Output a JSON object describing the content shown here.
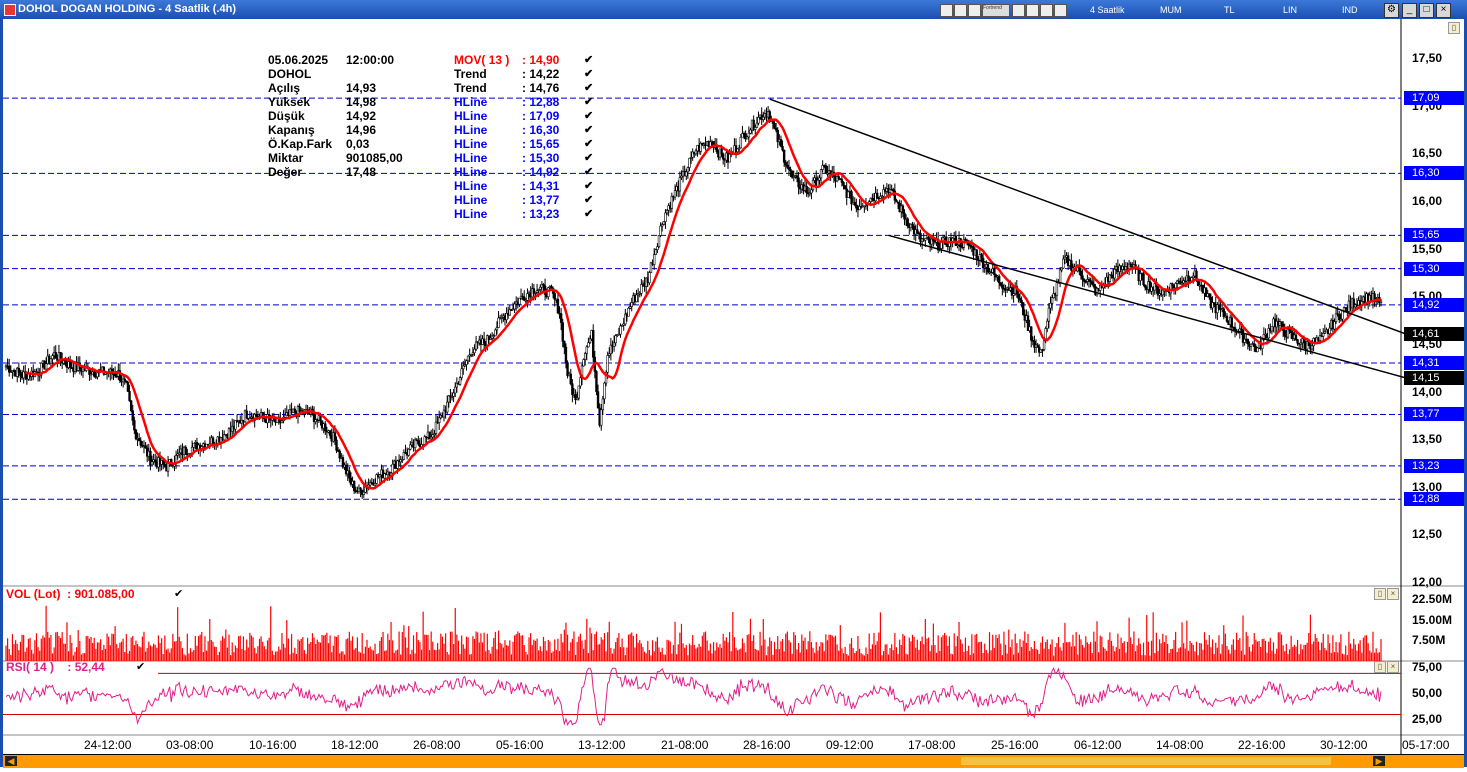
{
  "window": {
    "title": "DOHOL DOGAN HOLDING - 4 Saatlik (.4h)"
  },
  "toolbar": {
    "interval": "4 Saatlik",
    "candle_type": "MUM",
    "currency": "TL",
    "scale": "LIN",
    "mode": "IND",
    "plugin": "Fortrend"
  },
  "info": {
    "rows": [
      {
        "label": "05.06.2025",
        "value": "12:00:00"
      },
      {
        "label": "DOHOL",
        "value": ""
      },
      {
        "label": "Açılış",
        "value": "14,93"
      },
      {
        "label": "Yüksek",
        "value": "14,98"
      },
      {
        "label": "Düşük",
        "value": "14,92"
      },
      {
        "label": "Kapanış",
        "value": "14,96"
      },
      {
        "label": "Ö.Kap.Fark",
        "value": "0,03"
      },
      {
        "label": "Miktar",
        "value": "901085,00"
      },
      {
        "label": "Değer",
        "value": "17,48"
      }
    ],
    "indicators": [
      {
        "label": "MOV( 13 )",
        "value": ": 14,90",
        "color": "#ff0000"
      },
      {
        "label": "Trend",
        "value": ": 14,22",
        "color": "#000000"
      },
      {
        "label": "Trend",
        "value": ": 14,76",
        "color": "#000000"
      },
      {
        "label": "HLine",
        "value": ": 12,88",
        "color": "#0000ff"
      },
      {
        "label": "HLine",
        "value": ": 17,09",
        "color": "#0000ff"
      },
      {
        "label": "HLine",
        "value": ": 16,30",
        "color": "#0000ff"
      },
      {
        "label": "HLine",
        "value": ": 15,65",
        "color": "#0000ff"
      },
      {
        "label": "HLine",
        "value": ": 15,30",
        "color": "#0000ff"
      },
      {
        "label": "HLine",
        "value": ": 14,92",
        "color": "#0000ff"
      },
      {
        "label": "HLine",
        "value": ": 14,31",
        "color": "#0000ff"
      },
      {
        "label": "HLine",
        "value": ": 13,77",
        "color": "#0000ff"
      },
      {
        "label": "HLine",
        "value": ": 13,23",
        "color": "#0000ff"
      }
    ]
  },
  "price_axis": {
    "ticks": [
      "17,50",
      "17,00",
      "16,50",
      "16,00",
      "15,50",
      "15,00",
      "14,50",
      "14,00",
      "13,50",
      "13,00",
      "12,50",
      "12,00"
    ],
    "tick_values": [
      17.5,
      17.0,
      16.5,
      16.0,
      15.5,
      15.0,
      14.5,
      14.0,
      13.5,
      13.0,
      12.5,
      12.0
    ]
  },
  "hlines": [
    {
      "value": 17.09,
      "label": "17,09"
    },
    {
      "value": 16.3,
      "label": "16,30"
    },
    {
      "value": 15.65,
      "label": "15,65"
    },
    {
      "value": 15.3,
      "label": "15,30"
    },
    {
      "value": 14.92,
      "label": "14,92"
    },
    {
      "value": 14.31,
      "label": "14,31"
    },
    {
      "value": 13.77,
      "label": "13,77"
    },
    {
      "value": 13.23,
      "label": "13,23"
    },
    {
      "value": 12.88,
      "label": "12,88"
    }
  ],
  "trend_badges": [
    {
      "value": 14.61,
      "label": "14,61"
    },
    {
      "value": 14.15,
      "label": "14,15"
    }
  ],
  "volume": {
    "label": "VOL (Lot)",
    "value": ": 901.085,00",
    "ticks": [
      "22.50M",
      "15.00M",
      "7.50M"
    ],
    "tick_values": [
      22.5,
      15.0,
      7.5
    ]
  },
  "rsi": {
    "label": "RSI( 14 )",
    "value": ": 52,44",
    "ticks": [
      "75,00",
      "50,00",
      "25,00"
    ],
    "tick_values": [
      75,
      50,
      25
    ],
    "upper": 70,
    "lower": 30
  },
  "time_axis": [
    "24-12:00",
    "03-08:00",
    "10-16:00",
    "18-12:00",
    "26-08:00",
    "05-16:00",
    "13-12:00",
    "21-08:00",
    "28-16:00",
    "09-12:00",
    "17-08:00",
    "25-16:00",
    "06-12:00",
    "14-08:00",
    "22-16:00",
    "30-12:00",
    "05-17:00"
  ],
  "colors": {
    "up": "#ffffff",
    "down": "#000000",
    "ma": "#ff0000",
    "hline": "#0000cc",
    "badge": "#0000ff",
    "volume": "#ff0000",
    "rsi": "#e0208a"
  },
  "chart_data": {
    "type": "candlestick",
    "title": "DOHOL DOGAN HOLDING - 4 Saatlik (.4h)",
    "price_range": [
      11.97,
      17.92
    ],
    "price_anchors": [
      [
        0,
        14.28
      ],
      [
        10,
        14.18
      ],
      [
        20,
        14.22
      ],
      [
        30,
        14.4
      ],
      [
        40,
        14.28
      ],
      [
        55,
        14.22
      ],
      [
        70,
        14.2
      ],
      [
        75,
        14.05
      ],
      [
        80,
        13.6
      ],
      [
        90,
        13.3
      ],
      [
        100,
        13.22
      ],
      [
        110,
        13.38
      ],
      [
        120,
        13.45
      ],
      [
        130,
        13.5
      ],
      [
        140,
        13.6
      ],
      [
        150,
        13.78
      ],
      [
        160,
        13.74
      ],
      [
        170,
        13.68
      ],
      [
        180,
        13.8
      ],
      [
        190,
        13.78
      ],
      [
        200,
        13.62
      ],
      [
        205,
        13.5
      ],
      [
        210,
        13.25
      ],
      [
        215,
        13.05
      ],
      [
        220,
        12.95
      ],
      [
        230,
        13.1
      ],
      [
        240,
        13.2
      ],
      [
        245,
        13.3
      ],
      [
        255,
        13.45
      ],
      [
        265,
        13.55
      ],
      [
        270,
        13.7
      ],
      [
        280,
        14.05
      ],
      [
        290,
        14.45
      ],
      [
        300,
        14.55
      ],
      [
        310,
        14.8
      ],
      [
        320,
        14.98
      ],
      [
        330,
        15.1
      ],
      [
        340,
        15.05
      ],
      [
        345,
        14.85
      ],
      [
        350,
        14.2
      ],
      [
        355,
        13.9
      ],
      [
        360,
        14.4
      ],
      [
        365,
        14.6
      ],
      [
        370,
        13.7
      ],
      [
        375,
        14.4
      ],
      [
        380,
        14.55
      ],
      [
        390,
        14.95
      ],
      [
        400,
        15.2
      ],
      [
        410,
        15.85
      ],
      [
        420,
        16.2
      ],
      [
        430,
        16.55
      ],
      [
        440,
        16.65
      ],
      [
        445,
        16.5
      ],
      [
        450,
        16.45
      ],
      [
        460,
        16.7
      ],
      [
        470,
        16.9
      ],
      [
        475,
        16.95
      ],
      [
        480,
        16.7
      ],
      [
        490,
        16.25
      ],
      [
        500,
        16.1
      ],
      [
        510,
        16.35
      ],
      [
        520,
        16.2
      ],
      [
        530,
        15.95
      ],
      [
        540,
        16.05
      ],
      [
        550,
        16.15
      ],
      [
        560,
        15.85
      ],
      [
        570,
        15.6
      ],
      [
        580,
        15.55
      ],
      [
        590,
        15.6
      ],
      [
        600,
        15.55
      ],
      [
        610,
        15.35
      ],
      [
        620,
        15.15
      ],
      [
        630,
        15.05
      ],
      [
        640,
        14.55
      ],
      [
        645,
        14.4
      ],
      [
        650,
        14.85
      ],
      [
        660,
        15.4
      ],
      [
        670,
        15.25
      ],
      [
        680,
        15.05
      ],
      [
        690,
        15.25
      ],
      [
        700,
        15.35
      ],
      [
        710,
        15.15
      ],
      [
        720,
        15.05
      ],
      [
        730,
        15.15
      ],
      [
        740,
        15.25
      ],
      [
        750,
        14.95
      ],
      [
        760,
        14.8
      ],
      [
        770,
        14.6
      ],
      [
        780,
        14.45
      ],
      [
        790,
        14.75
      ],
      [
        800,
        14.6
      ],
      [
        810,
        14.5
      ],
      [
        820,
        14.55
      ],
      [
        830,
        14.8
      ],
      [
        840,
        14.95
      ],
      [
        850,
        15.0
      ],
      [
        857,
        14.93
      ]
    ],
    "ma_period": 13,
    "volume_scale_max": 26.0,
    "volume_unit": "M lot",
    "rsi_range": [
      10,
      82
    ],
    "rsi_last": 52.44
  }
}
